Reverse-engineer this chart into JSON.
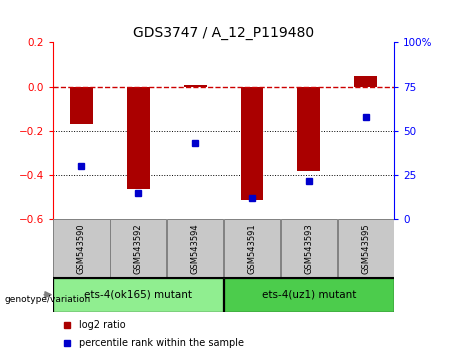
{
  "title": "GDS3747 / A_12_P119480",
  "samples": [
    "GSM543590",
    "GSM543592",
    "GSM543594",
    "GSM543591",
    "GSM543593",
    "GSM543595"
  ],
  "log2_ratio": [
    -0.17,
    -0.46,
    0.01,
    -0.51,
    -0.38,
    0.05
  ],
  "percentile_rank": [
    30,
    15,
    43,
    12,
    22,
    58
  ],
  "ylim_left": [
    -0.6,
    0.2
  ],
  "ylim_right": [
    0,
    100
  ],
  "groups": [
    {
      "label": "ets-4(ok165) mutant",
      "samples": [
        0,
        1,
        2
      ],
      "color": "#90EE90"
    },
    {
      "label": "ets-4(uz1) mutant",
      "samples": [
        3,
        4,
        5
      ],
      "color": "#4CCC4C"
    }
  ],
  "bar_color": "#AA0000",
  "dot_color": "#0000CC",
  "ref_line_color": "#CC0000",
  "grid_color": "#000000",
  "sample_box_color": "#C8C8C8",
  "legend_log2": "log2 ratio",
  "legend_pct": "percentile rank within the sample"
}
